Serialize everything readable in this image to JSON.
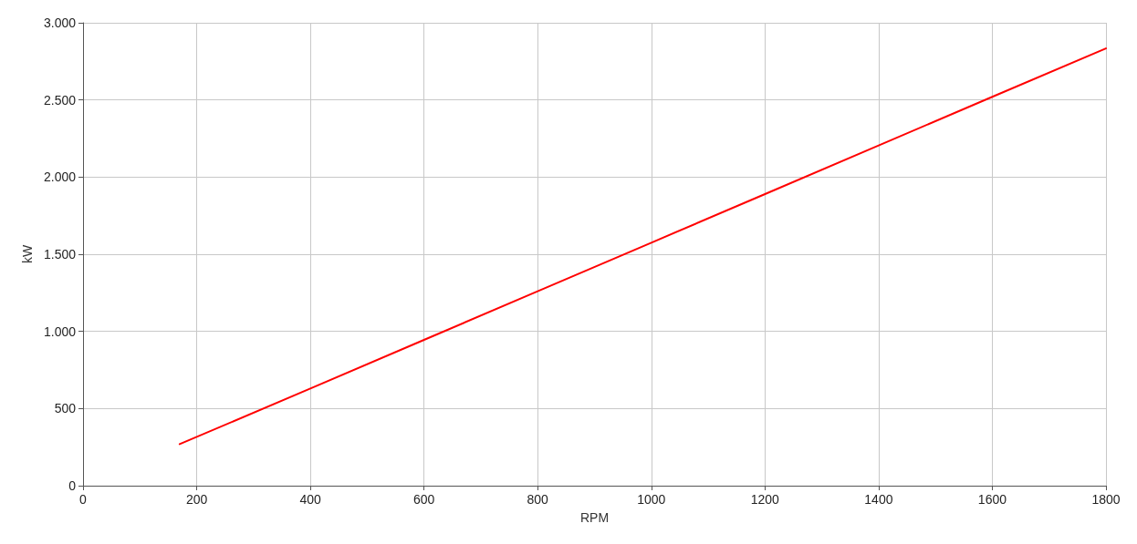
{
  "chart_data": {
    "type": "line",
    "xlabel": "RPM",
    "ylabel": "kW",
    "x": [
      170,
      400,
      600,
      800,
      1000,
      1200,
      1400,
      1600,
      1800
    ],
    "series": [
      {
        "color": "#ff0000",
        "values": [
          269,
          630,
          945,
          1260,
          1575,
          1890,
          2205,
          2520,
          2834
        ]
      }
    ],
    "xlim": [
      0,
      1800
    ],
    "xticks": [
      0,
      200,
      400,
      600,
      800,
      1000,
      1200,
      1400,
      1600,
      1800
    ],
    "ylim": [
      0,
      3000
    ],
    "yticks": [
      {
        "value": 0,
        "label": "0"
      },
      {
        "value": 500,
        "label": "500"
      },
      {
        "value": 1000,
        "label": "1.000"
      },
      {
        "value": 1500,
        "label": "1.500"
      },
      {
        "value": 2000,
        "label": "2.000"
      },
      {
        "value": 2500,
        "label": "2.500"
      },
      {
        "value": 3000,
        "label": "3.000"
      }
    ],
    "grid": true,
    "marker": "none",
    "line_style": "solid"
  }
}
